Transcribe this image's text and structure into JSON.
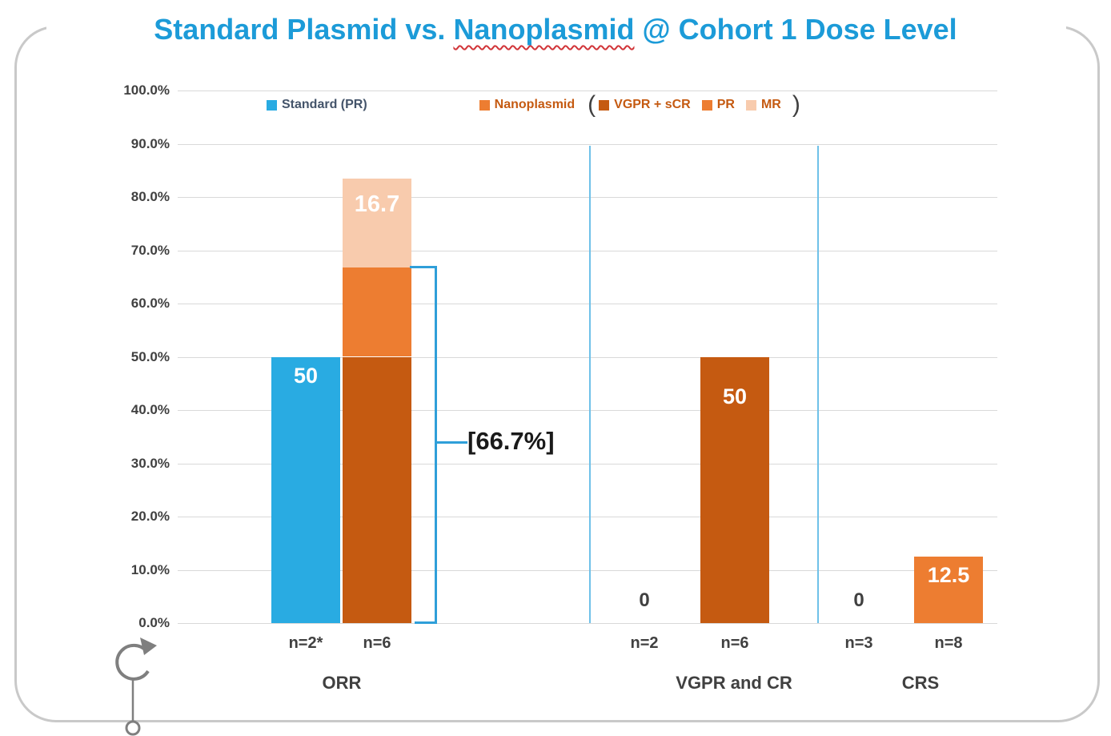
{
  "title": {
    "pre": "Standard Plasmid vs. ",
    "highlight": "Nanoplasmid",
    "post": " @ Cohort 1 Dose Level",
    "color": "#1C9BD8"
  },
  "legend": {
    "standard": {
      "label": "Standard (PR)",
      "color": "#29ABE2"
    },
    "nanoplasmid": {
      "label": "Nanoplasmid",
      "color": "#ED7D31"
    },
    "open_paren": "(",
    "close_paren": ")",
    "sub_items": [
      {
        "label": "VGPR + sCR",
        "color": "#C55A11"
      },
      {
        "label": "PR",
        "color": "#ED7D31"
      },
      {
        "label": "MR",
        "color": "#F8CBAD"
      }
    ]
  },
  "chart_data": {
    "type": "bar",
    "title": "Standard Plasmid vs. Nanoplasmid @ Cohort 1 Dose Level",
    "grid": true,
    "legend_position": "top",
    "y_axis": {
      "min": 0,
      "max": 100,
      "step": 10,
      "tick_labels": [
        "0.0%",
        "10.0%",
        "20.0%",
        "30.0%",
        "40.0%",
        "50.0%",
        "60.0%",
        "70.0%",
        "80.0%",
        "90.0%",
        "100.0%"
      ]
    },
    "groups": [
      {
        "label": "ORR",
        "annotation": "[66.7%]",
        "bars": [
          {
            "series": "Standard (PR)",
            "n": "n=2*",
            "value": 50,
            "value_label": "50",
            "color": "#29ABE2"
          },
          {
            "series": "Nanoplasmid",
            "n": "n=6",
            "total": 83.4,
            "stack": [
              {
                "name": "VGPR + sCR",
                "value": 50,
                "color": "#C55A11"
              },
              {
                "name": "PR",
                "value": 16.7,
                "color": "#ED7D31"
              },
              {
                "name": "MR",
                "value": 16.7,
                "color": "#F8CBAD",
                "value_label": "16.7"
              }
            ]
          }
        ]
      },
      {
        "label": "VGPR and CR",
        "bars": [
          {
            "series": "Standard",
            "n": "n=2",
            "value": 0,
            "value_label": "0"
          },
          {
            "series": "Nanoplasmid",
            "n": "n=6",
            "value": 50,
            "value_label": "50",
            "color": "#C55A11"
          }
        ]
      },
      {
        "label": "CRS",
        "bars": [
          {
            "series": "Standard",
            "n": "n=3",
            "value": 0,
            "value_label": "0"
          },
          {
            "series": "Nanoplasmid",
            "n": "n=8",
            "value": 12.5,
            "value_label": "12.5",
            "color": "#ED7D31"
          }
        ]
      }
    ]
  },
  "colors": {
    "title_blue": "#1C9BD8",
    "standard_blue": "#29ABE2",
    "vgpr_scr_dark_orange": "#C55A11",
    "pr_orange": "#ED7D31",
    "mr_peach": "#F8CBAD",
    "separator_blue": "#6FC1E9",
    "bracket_blue": "#2F9FD9",
    "gridline_gray": "#D9D9D9",
    "frame_gray": "#C9C9C9"
  }
}
